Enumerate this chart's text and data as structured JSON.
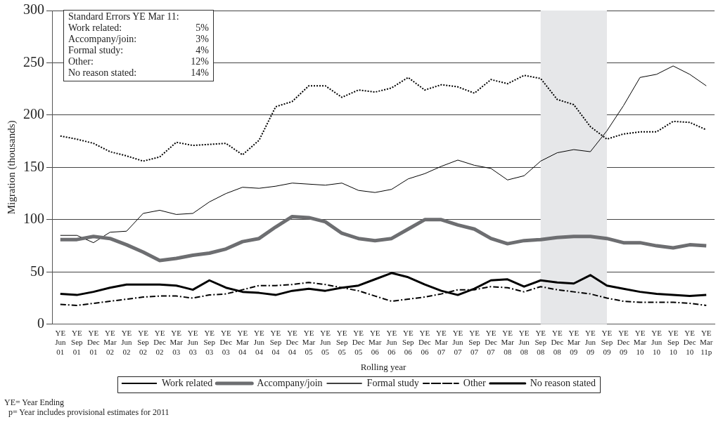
{
  "chart_data": {
    "type": "line",
    "xlabel": "Rolling year",
    "ylabel": "Migration (thousands)",
    "categories": [
      "YE Jun 01",
      "YE Sep 01",
      "YE Dec 01",
      "YE Mar 02",
      "YE Jun 02",
      "YE Sep 02",
      "YE Dec 02",
      "YE Mar 03",
      "YE Jun 03",
      "YE Sep 03",
      "YE Dec 03",
      "YE Mar 04",
      "YE Jun 04",
      "YE Sep 04",
      "YE Dec 04",
      "YE Mar 05",
      "YE Jun 05",
      "YE Sep 05",
      "YE Dec 05",
      "YE Mar 06",
      "YE Jun 06",
      "YE Sep 06",
      "YE Dec 06",
      "YE Mar 07",
      "YE Jun 07",
      "YE Sep 07",
      "YE Dec 07",
      "YE Mar 08",
      "YE Jun 08",
      "YE Sep 08",
      "YE Dec 08",
      "YE Mar 09",
      "YE Jun 09",
      "YE Sep 09",
      "YE Dec 09",
      "YE Mar 10",
      "YE Jun 10",
      "YE Sep 10",
      "YE Dec 10",
      "YE Mar 11p"
    ],
    "series": [
      {
        "name": "Work related",
        "color": "#000000",
        "line_style": "dotted",
        "values": [
          180,
          177,
          173,
          165,
          161,
          156,
          160,
          174,
          171,
          172,
          173,
          162,
          176,
          208,
          213,
          228,
          228,
          217,
          224,
          222,
          226,
          236,
          224,
          229,
          227,
          221,
          234,
          230,
          238,
          235,
          215,
          210,
          189,
          177,
          182,
          184,
          184,
          194,
          193,
          186
        ]
      },
      {
        "name": "Accompany/join",
        "color": "#6d6e71",
        "line_style": "solid",
        "values": [
          81,
          81,
          84,
          82,
          76,
          69,
          61,
          63,
          66,
          68,
          72,
          79,
          82,
          93,
          103,
          102,
          98,
          87,
          82,
          80,
          82,
          91,
          100,
          100,
          95,
          91,
          82,
          77,
          80,
          81,
          83,
          84,
          84,
          82,
          78,
          78,
          75,
          73,
          76,
          75
        ]
      },
      {
        "name": "Formal study",
        "color": "#000000",
        "line_style": "solid",
        "values": [
          85,
          85,
          78,
          88,
          89,
          106,
          109,
          105,
          106,
          117,
          125,
          131,
          130,
          132,
          135,
          134,
          133,
          135,
          128,
          126,
          129,
          139,
          144,
          151,
          157,
          152,
          149,
          138,
          142,
          156,
          164,
          167,
          165,
          185,
          209,
          236,
          239,
          247,
          239,
          228
        ]
      },
      {
        "name": "Other",
        "color": "#000000",
        "line_style": "dashed",
        "values": [
          19,
          18,
          20,
          22,
          24,
          26,
          27,
          27,
          25,
          28,
          29,
          33,
          37,
          37,
          38,
          40,
          38,
          35,
          32,
          27,
          22,
          24,
          26,
          29,
          33,
          33,
          36,
          35,
          31,
          36,
          33,
          31,
          29,
          25,
          22,
          21,
          21,
          21,
          20,
          18
        ]
      },
      {
        "name": "No reason stated",
        "color": "#000000",
        "line_style": "solid",
        "values": [
          29,
          28,
          31,
          35,
          38,
          38,
          38,
          37,
          33,
          42,
          35,
          31,
          30,
          28,
          32,
          34,
          32,
          35,
          37,
          43,
          49,
          45,
          38,
          32,
          28,
          34,
          42,
          43,
          36,
          42,
          40,
          39,
          47,
          37,
          34,
          31,
          29,
          28,
          27,
          28
        ]
      }
    ],
    "ylim": [
      0,
      300
    ],
    "yticks": [
      0,
      50,
      100,
      150,
      200,
      250,
      300
    ],
    "grid": "y",
    "legend": "bottom",
    "marker": "none",
    "bands": [
      {
        "axis": "x",
        "from": "YE Sep 08",
        "to": "YE Sep 09",
        "color": "#e6e7e9"
      }
    ],
    "annotations": [
      "Standard Errors YE Mar 11:",
      "Work related: 5%",
      "Accompany/join: 3%",
      "Formal study: 4%",
      "Other: 12%",
      "No reason stated: 14%",
      "YE= Year Ending",
      "p= Year includes provisional estimates for 2011"
    ]
  }
}
